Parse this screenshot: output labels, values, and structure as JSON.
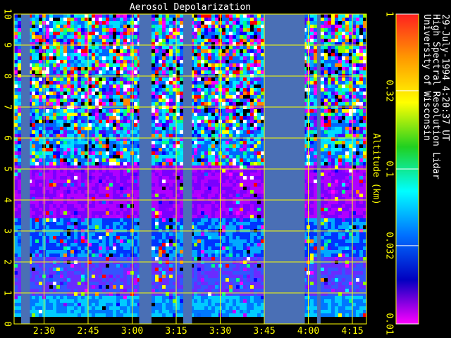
{
  "chart_data": {
    "type": "heatmap",
    "title": "Aerosol Depolarization",
    "ylabel": "Altitude (km)",
    "y_ticks": [
      "0",
      "1",
      "2",
      "3",
      "4",
      "5",
      "6",
      "7",
      "8",
      "9",
      "10"
    ],
    "ylim": [
      0,
      10
    ],
    "x_ticks": [
      "2:30",
      "2:45",
      "3:00",
      "3:15",
      "3:30",
      "3:45",
      "4:00",
      "4:15"
    ],
    "x_tick_hours": [
      2.5,
      2.75,
      3.0,
      3.25,
      3.5,
      3.75,
      4.0,
      4.25
    ],
    "xlim": [
      2.33,
      4.33
    ],
    "grid": true,
    "data_gaps_hours": [
      [
        2.37,
        2.42
      ],
      [
        3.04,
        3.11
      ],
      [
        3.29,
        3.34
      ],
      [
        3.75,
        3.98
      ],
      [
        4.05,
        4.07
      ]
    ],
    "colorbar": {
      "scale": "log",
      "ticks": [
        "1",
        "0.32",
        "0.1",
        "0.032",
        "0.01"
      ],
      "tick_values": [
        1,
        0.32,
        0.1,
        0.032,
        0.01
      ],
      "colors": [
        "#ff2020",
        "#ff9a00",
        "#ffff00",
        "#20d020",
        "#00ffff",
        "#0070ff",
        "#0000c0",
        "#ff00ff"
      ]
    },
    "annotation_lines": [
      "University of Wisconsin",
      "High Spectral Resolution Lidar",
      "29-July-1994  4:20:37 UT"
    ]
  },
  "colors": {
    "grid": "#ffff00",
    "gap": "#4a6fb5",
    "surface": "#000000"
  }
}
